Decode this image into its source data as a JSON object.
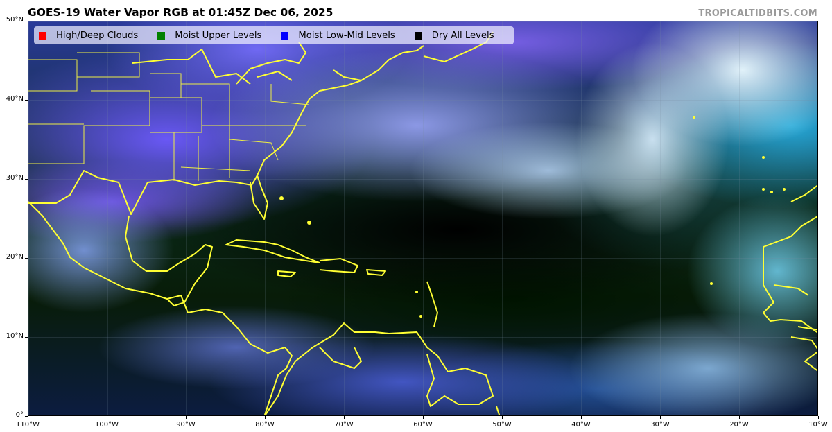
{
  "title": "GOES-19 Water Vapor RGB at 01:45Z Dec 06, 2025",
  "credit": "TROPICALTIDBITS.COM",
  "legend": [
    {
      "label": "High/Deep Clouds",
      "color": "#ff0000"
    },
    {
      "label": "Moist Upper Levels",
      "color": "#008000"
    },
    {
      "label": "Moist Low-Mid Levels",
      "color": "#0000ff"
    },
    {
      "label": "Dry All Levels",
      "color": "#000000"
    }
  ],
  "map": {
    "lon_range": [
      -110,
      -10
    ],
    "lat_range": [
      0,
      50
    ],
    "coastline_color": "#ffff33",
    "gridlines": true
  },
  "x_ticks": [
    "110°W",
    "100°W",
    "90°W",
    "80°W",
    "70°W",
    "60°W",
    "50°W",
    "40°W",
    "30°W",
    "20°W",
    "10°W"
  ],
  "y_ticks": [
    "50°N",
    "40°N",
    "30°N",
    "20°N",
    "10°N",
    "0°"
  ]
}
